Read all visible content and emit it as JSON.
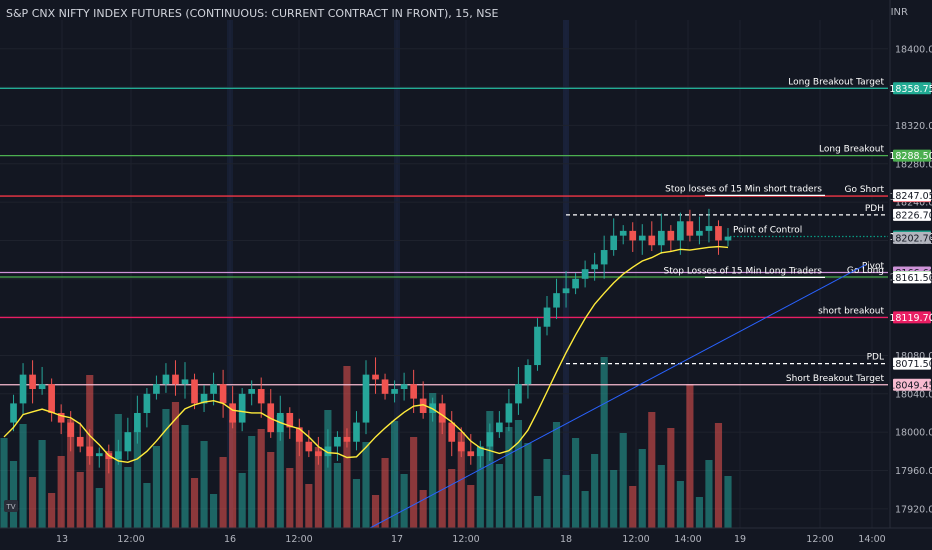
{
  "title": "S&P CNX NIFTY INDEX FUTURES (CONTINUOUS: CURRENT CONTRACT IN FRONT), 15, NSE",
  "currency": "INR",
  "badge_text": "TV",
  "chart_data": {
    "type": "candlestick",
    "title": "S&P CNX NIFTY INDEX FUTURES (CONTINUOUS: CURRENT CONTRACT IN FRONT), 15, NSE",
    "y_axis": {
      "unit": "INR",
      "range": [
        17900,
        18430
      ],
      "ticks": [
        17920,
        17960,
        18000,
        18040,
        18080,
        18120,
        18160,
        18200,
        18240,
        18280,
        18320,
        18360,
        18400
      ]
    },
    "x_axis": {
      "ticks": [
        "13",
        "12:00",
        "16",
        "12:00",
        "17",
        "12:00",
        "18",
        "12:00",
        "14:00",
        "19",
        "12:00",
        "14:00"
      ]
    },
    "candle_close_path": [
      18010,
      18030,
      18060,
      18045,
      18050,
      18020,
      18010,
      17995,
      17985,
      17975,
      17978,
      17972,
      17980,
      18000,
      18020,
      18040,
      18050,
      18060,
      18050,
      18055,
      18030,
      18040,
      18050,
      18030,
      18010,
      18040,
      18045,
      18030,
      18000,
      18020,
      18005,
      17990,
      17980,
      17975,
      17985,
      17995,
      17990,
      18010,
      18060,
      18055,
      18040,
      18045,
      18050,
      18035,
      18020,
      18030,
      18010,
      17990,
      17980,
      17975,
      17985,
      18000,
      18010,
      18030,
      18050,
      18070,
      18110,
      18130,
      18145,
      18150,
      18160,
      18170,
      18175,
      18190,
      18205,
      18210,
      18200,
      18205,
      18195,
      18210,
      18200,
      18220,
      18205,
      18210,
      18215,
      18200,
      18204
    ],
    "levels": [
      {
        "label": "Long Breakout Target",
        "price": 18358.75,
        "tag": "18358.75",
        "color": "#22ab94"
      },
      {
        "label": "Long Breakout",
        "price": 18288.5,
        "tag": "18288.50",
        "color": "#4caf50"
      },
      {
        "label": "Go Short",
        "price": 18246.3,
        "tag": "18246.30",
        "color": "#f23645"
      },
      {
        "label": "Stop losses of 15 Min short traders",
        "price": 18247.05,
        "tag": "18247.05",
        "color": "#ffffff"
      },
      {
        "label": "PDH",
        "price": 18226.7,
        "tag": "18226.70",
        "color": "#ffffff"
      },
      {
        "label": "Point of Control",
        "price": 18204.1,
        "tag": "18204.10",
        "color": "#089981"
      },
      {
        "label": "",
        "price": 18202.7,
        "tag": "18202.70",
        "color": "#b2b5be"
      },
      {
        "label": "Pivot",
        "price": 18166.6,
        "tag": "18166.60",
        "color": "#ce93d8"
      },
      {
        "label": "Go Long",
        "price": 18161.9,
        "tag": "18161.90",
        "color": "#4caf50"
      },
      {
        "label": "Stop Losses of 15 Min Long Traders",
        "price": 18161.5,
        "tag": "18161.50",
        "color": "#ffffff"
      },
      {
        "label": "short breakout",
        "price": 18119.7,
        "tag": "18119.70",
        "color": "#e91e63"
      },
      {
        "label": "PDL",
        "price": 18071.5,
        "tag": "18071.50",
        "color": "#ffffff"
      },
      {
        "label": "Short  Breakout Target",
        "price": 18049.45,
        "tag": "18049.45",
        "color": "#f8bbd0"
      }
    ],
    "moving_average_color": "#ffeb3b",
    "trendline_color": "#2962ff",
    "volume_colors": {
      "up": "#26a69a",
      "down": "#ef5350"
    }
  }
}
